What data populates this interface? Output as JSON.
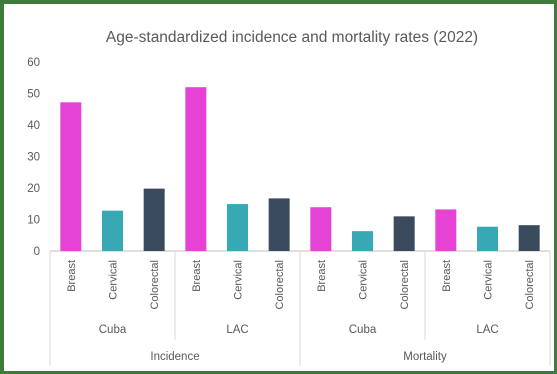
{
  "chart_data": {
    "type": "bar",
    "title": "Age-standardized  incidence and mortality rates (2022)",
    "ylim": [
      0,
      60
    ],
    "yticks": [
      0,
      10,
      20,
      30,
      40,
      50,
      60
    ],
    "grid": false,
    "legend": "none",
    "groups": [
      {
        "label": "Incidence",
        "subgroups": [
          {
            "label": "Cuba",
            "categories": [
              "Breast",
              "Cervical",
              "Colorectal"
            ],
            "values": [
              47.2,
              12.8,
              19.8
            ]
          },
          {
            "label": "LAC",
            "categories": [
              "Breast",
              "Cervical",
              "Colorectal"
            ],
            "values": [
              52.0,
              14.9,
              16.7
            ]
          }
        ]
      },
      {
        "label": "Mortality",
        "subgroups": [
          {
            "label": "Cuba",
            "categories": [
              "Breast",
              "Cervical",
              "Colorectal"
            ],
            "values": [
              13.9,
              6.3,
              11.0
            ]
          },
          {
            "label": "LAC",
            "categories": [
              "Breast",
              "Cervical",
              "Colorectal"
            ],
            "values": [
              13.2,
              7.7,
              8.2
            ]
          }
        ]
      }
    ],
    "colors": {
      "Breast": "#e542d6",
      "Cervical": "#36a9b4",
      "Colorectal": "#3b4b5e"
    }
  }
}
